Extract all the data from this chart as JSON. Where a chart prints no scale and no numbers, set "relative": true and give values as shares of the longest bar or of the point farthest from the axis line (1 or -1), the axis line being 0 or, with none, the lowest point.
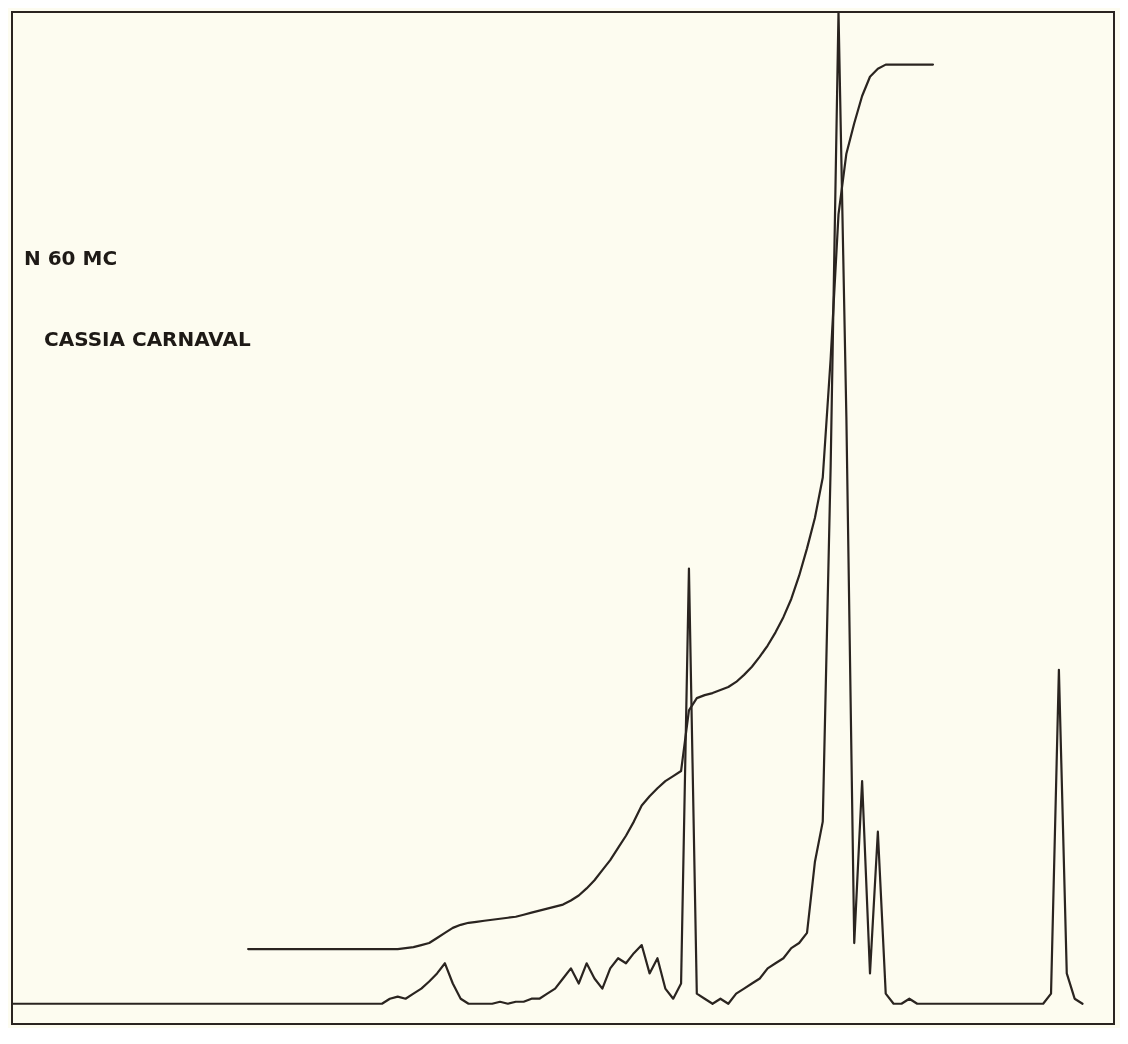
{
  "chart_data": {
    "type": "line",
    "relative": true,
    "grid": false,
    "legend": false,
    "marker": "none",
    "line_style": "solid",
    "annotations": [
      "N 60 MC",
      "CASSIA CARNAVAL"
    ],
    "categories": [
      null,
      null,
      null,
      null,
      null,
      null,
      null,
      null,
      null,
      null,
      null,
      null,
      null,
      null,
      null,
      null,
      null,
      null,
      null,
      null,
      null,
      null,
      null,
      null,
      null,
      null,
      null,
      null,
      null,
      null,
      null,
      null,
      null,
      null,
      null,
      null,
      null,
      null,
      null,
      null,
      null,
      null,
      null,
      null,
      null,
      null,
      null,
      null,
      null,
      null,
      null,
      null,
      null,
      null,
      null,
      null,
      null,
      null,
      null,
      null,
      null,
      null,
      null,
      null,
      null,
      null,
      null,
      null,
      null,
      null,
      null,
      null,
      null,
      null,
      null,
      null,
      null,
      null,
      null,
      null,
      null,
      null,
      null,
      null,
      null,
      null,
      null,
      null,
      null,
      null,
      null,
      null,
      null,
      null,
      null,
      null,
      null,
      null,
      null,
      null,
      null,
      null,
      null,
      null,
      null,
      null,
      null,
      null,
      null,
      null,
      null,
      null,
      null,
      null,
      null,
      null,
      null,
      null,
      null,
      null,
      null,
      null,
      null,
      null,
      null,
      null,
      null,
      null,
      null,
      null,
      null,
      null,
      null,
      null,
      null,
      null,
      null,
      null,
      null,
      null,
      null
    ],
    "series": [
      {
        "color": "#2a2420",
        "values": [
          0.02,
          0.02,
          0.02,
          0.02,
          0.02,
          0.02,
          0.02,
          0.02,
          0.02,
          0.02,
          0.02,
          0.02,
          0.02,
          0.02,
          0.02,
          0.02,
          0.02,
          0.02,
          0.02,
          0.02,
          0.02,
          0.02,
          0.02,
          0.02,
          0.02,
          0.02,
          0.02,
          0.02,
          0.02,
          0.02,
          0.02,
          0.02,
          0.02,
          0.02,
          0.02,
          0.02,
          0.02,
          0.02,
          0.02,
          0.02,
          0.02,
          0.02,
          0.02,
          0.02,
          0.02,
          0.02,
          0.02,
          0.02,
          0.025,
          0.027,
          0.025,
          0.03,
          0.035,
          0.042,
          0.05,
          0.06,
          0.04,
          0.025,
          0.02,
          0.02,
          0.02,
          0.02,
          0.022,
          0.02,
          0.022,
          0.022,
          0.025,
          0.025,
          0.03,
          0.035,
          0.045,
          0.055,
          0.04,
          0.06,
          0.045,
          0.035,
          0.055,
          0.065,
          0.06,
          0.07,
          0.078,
          0.05,
          0.065,
          0.035,
          0.025,
          0.04,
          0.45,
          0.03,
          0.025,
          0.02,
          0.025,
          0.02,
          0.03,
          0.035,
          0.04,
          0.045,
          0.055,
          0.06,
          0.065,
          0.075,
          0.08,
          0.09,
          0.16,
          0.2,
          0.55,
          1,
          0.6,
          0.08,
          0.24,
          0.05,
          0.19,
          0.03,
          0.02,
          0.02,
          0.025,
          0.02,
          0.02,
          0.02,
          0.02,
          0.02,
          0.02,
          0.02,
          0.02,
          0.02,
          0.02,
          0.02,
          0.02,
          0.02,
          0.02,
          0.02,
          0.02,
          0.02,
          0.03,
          0.35,
          0.05,
          0.025,
          0.02,
          null,
          null,
          null,
          null
        ]
      },
      {
        "color": "#2a2420",
        "values": [
          null,
          null,
          null,
          null,
          null,
          null,
          null,
          null,
          null,
          null,
          null,
          null,
          null,
          null,
          null,
          null,
          null,
          null,
          null,
          null,
          null,
          null,
          null,
          null,
          null,
          null,
          null,
          null,
          null,
          null,
          0.074,
          0.074,
          0.074,
          0.074,
          0.074,
          0.074,
          0.074,
          0.074,
          0.074,
          0.074,
          0.074,
          0.074,
          0.074,
          0.074,
          0.074,
          0.074,
          0.074,
          0.074,
          0.074,
          0.074,
          0.075,
          0.076,
          0.078,
          0.08,
          0.085,
          0.09,
          0.095,
          0.098,
          0.1,
          0.101,
          0.102,
          0.103,
          0.104,
          0.105,
          0.106,
          0.108,
          0.11,
          0.112,
          0.114,
          0.116,
          0.118,
          0.122,
          0.127,
          0.134,
          0.142,
          0.152,
          0.162,
          0.174,
          0.186,
          0.2,
          0.216,
          0.225,
          0.233,
          0.24,
          0.245,
          0.25,
          0.31,
          0.322,
          0.325,
          0.327,
          0.33,
          0.333,
          0.338,
          0.345,
          0.353,
          0.363,
          0.374,
          0.387,
          0.402,
          0.42,
          0.443,
          0.47,
          0.5,
          0.54,
          0.657,
          0.8,
          0.86,
          0.89,
          0.917,
          0.936,
          0.944,
          0.948,
          0.948,
          0.948,
          0.948,
          0.948,
          0.948,
          0.948,
          null,
          null,
          null,
          null,
          null,
          null,
          null,
          null,
          null,
          null,
          null,
          null,
          null,
          null,
          null,
          null,
          null,
          null,
          null,
          null,
          null,
          null,
          null
        ]
      }
    ]
  }
}
